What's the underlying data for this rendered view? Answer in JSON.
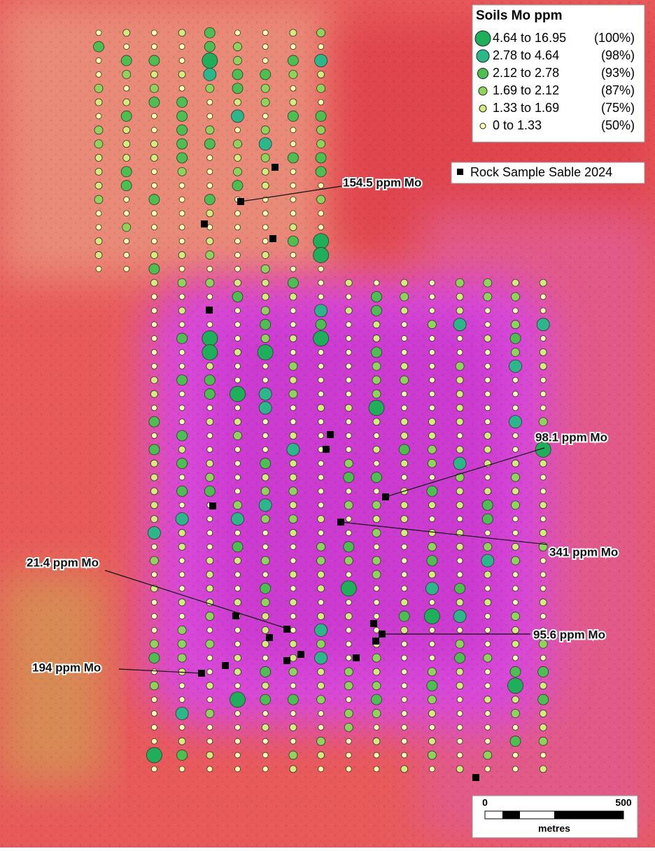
{
  "legend": {
    "title": "Soils Mo ppm",
    "items": [
      {
        "range": "4.64 to 16.95",
        "pct": "(100%)"
      },
      {
        "range": "2.78 to 4.64",
        "pct": "(98%)"
      },
      {
        "range": "2.12 to 2.78",
        "pct": "(93%)"
      },
      {
        "range": "1.69 to 2.12",
        "pct": "(87%)"
      },
      {
        "range": "1.33 to 1.69",
        "pct": "(75%)"
      },
      {
        "range": "0 to 1.33",
        "pct": "(50%)"
      }
    ],
    "rock_label": "Rock Sample Sable 2024"
  },
  "annotations": [
    "154.5 ppm Mo",
    "98.1 ppm Mo",
    "341 ppm Mo",
    "21.4 ppm Mo",
    "95.6 ppm Mo",
    "194 ppm Mo"
  ],
  "scale_bar": {
    "start": "0",
    "end": "500",
    "unit": "metres"
  }
}
